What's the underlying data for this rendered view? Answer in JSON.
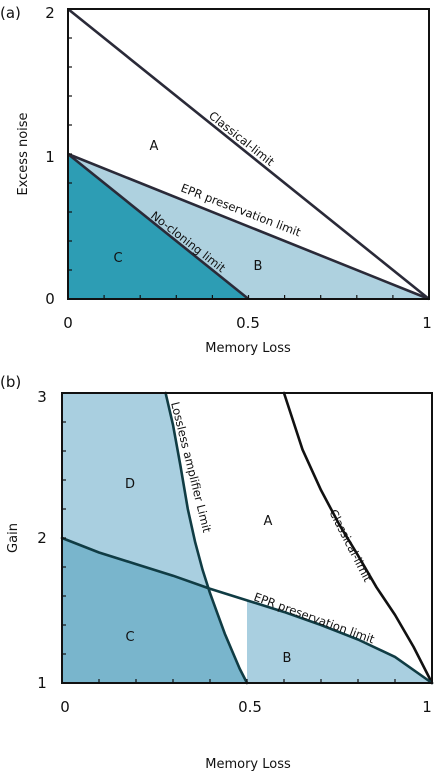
{
  "chart_data": [
    {
      "type": "area",
      "panel_label": "(a)",
      "xlabel": "Memory Loss",
      "ylabel": "Excess noise",
      "xlim": [
        0,
        1
      ],
      "ylim": [
        0,
        2
      ],
      "xticks": [
        "0",
        "0.5",
        "1"
      ],
      "yticks": [
        "0",
        "1",
        "2"
      ],
      "series": [
        {
          "name": "Classical-limit",
          "x": [
            0,
            1
          ],
          "y": [
            2,
            0
          ]
        },
        {
          "name": "EPR preservation limit",
          "x": [
            0,
            1
          ],
          "y": [
            1,
            0
          ]
        },
        {
          "name": "No-cloning limit",
          "x": [
            0,
            0.5
          ],
          "y": [
            1,
            0
          ]
        }
      ],
      "regions": [
        {
          "label": "A",
          "x": 0.24,
          "y": 1.07
        },
        {
          "label": "B",
          "x": 0.53,
          "y": 0.23
        },
        {
          "label": "C",
          "x": 0.14,
          "y": 0.29
        }
      ],
      "colors": {
        "region_b": "#aed1df",
        "region_c": "#2d9db4",
        "line": "#2a2a38"
      }
    },
    {
      "type": "area",
      "panel_label": "(b)",
      "xlabel": "Memory Loss",
      "ylabel": "Gain",
      "xlim": [
        0,
        1
      ],
      "ylim": [
        1,
        3
      ],
      "xticks": [
        "0",
        "0.5",
        "1"
      ],
      "yticks": [
        "1",
        "2",
        "3"
      ],
      "series": [
        {
          "name": "Classical-limit",
          "x": [
            0.6,
            0.65,
            0.7,
            0.75,
            0.8,
            0.85,
            0.9,
            0.95,
            1.0
          ],
          "y": [
            3.0,
            2.61,
            2.33,
            2.09,
            1.88,
            1.66,
            1.47,
            1.25,
            1.0
          ]
        },
        {
          "name": "EPR preservation limit",
          "x": [
            0,
            0.1,
            0.2,
            0.3,
            0.4,
            0.5,
            0.6,
            0.7,
            0.8,
            0.9,
            1.0
          ],
          "y": [
            2.0,
            1.9,
            1.82,
            1.74,
            1.65,
            1.57,
            1.49,
            1.4,
            1.3,
            1.18,
            1.0
          ]
        },
        {
          "name": "Lossless amplifier Limit",
          "x": [
            0.28,
            0.3,
            0.32,
            0.34,
            0.36,
            0.38,
            0.4,
            0.42,
            0.44,
            0.46,
            0.48,
            0.5
          ],
          "y": [
            3.0,
            2.78,
            2.5,
            2.2,
            1.97,
            1.78,
            1.62,
            1.48,
            1.34,
            1.22,
            1.1,
            1.0
          ]
        }
      ],
      "regions": [
        {
          "label": "A",
          "x": 0.57,
          "y": 2.27
        },
        {
          "label": "B",
          "x": 0.61,
          "y": 1.24
        },
        {
          "label": "C",
          "x": 0.18,
          "y": 1.44
        },
        {
          "label": "D",
          "x": 0.18,
          "y": 2.5
        }
      ],
      "colors": {
        "region_light": "#a9cfe0",
        "region_c": "#79b5cc",
        "line": "#103c44",
        "line_classical": "#111111"
      }
    }
  ]
}
